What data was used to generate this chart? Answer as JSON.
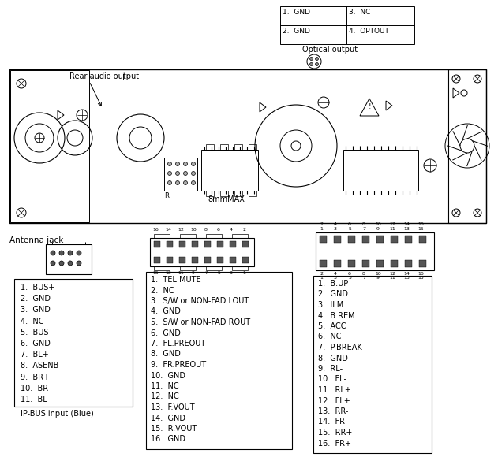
{
  "fig_width": 6.31,
  "fig_height": 5.85,
  "bg_color": "#ffffff",
  "optical_box_text": [
    "1.  GND",
    "3.  NC",
    "2.  GND",
    "4.  OPTOUT"
  ],
  "optical_label": "Optical output",
  "rear_audio_label": "Rear audio output",
  "antenna_label": "Antenna jack",
  "ipbus_label": "IP-BUS input (Blue)",
  "connector1_pins": [
    "1.  BUS+",
    "2.  GND",
    "3.  GND",
    "4.  NC",
    "5.  BUS-",
    "6.  GND",
    "7.  BL+",
    "8.  ASENB",
    "9.  BR+",
    "10.  BR-",
    "11.  BL-"
  ],
  "connector2_pins": [
    "1.  TEL MUTE",
    "2.  NC",
    "3.  S/W or NON-FAD LOUT",
    "4.  GND",
    "5.  S/W or NON-FAD ROUT",
    "6.  GND",
    "7.  FL.PREOUT",
    "8.  GND",
    "9.  FR.PREOUT",
    "10.  GND",
    "11.  NC",
    "12.  NC",
    "13.  F.VOUT",
    "14.  GND",
    "15.  R.VOUT",
    "16.  GND"
  ],
  "connector3_pins": [
    "1.  B.UP",
    "2.  GND",
    "3.  ILM",
    "4.  B.REM",
    "5.  ACC",
    "6.  NC",
    "7.  P.BREAK",
    "8.  GND",
    "9.  RL-",
    "10.  FL-",
    "11.  RL+",
    "12.  FL+",
    "13.  RR-",
    "14.  FR-",
    "15.  RR+",
    "16.  FR+"
  ]
}
